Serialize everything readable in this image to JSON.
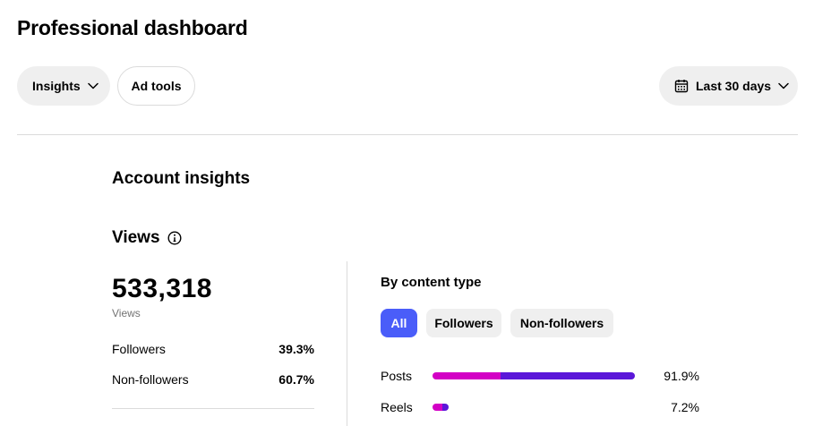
{
  "page": {
    "title": "Professional dashboard"
  },
  "toolbar": {
    "insights_label": "Insights",
    "ad_tools_label": "Ad tools",
    "date_range_label": "Last 30 days"
  },
  "insights": {
    "section_title": "Account insights",
    "views_heading": "Views",
    "views_total": "533,318",
    "views_label": "Views",
    "split": [
      {
        "label": "Followers",
        "value": "39.3%"
      },
      {
        "label": "Non-followers",
        "value": "60.7%"
      }
    ]
  },
  "content_type": {
    "title": "By content type",
    "filters": [
      {
        "label": "All",
        "selected": true
      },
      {
        "label": "Followers",
        "selected": false
      },
      {
        "label": "Non-followers",
        "selected": false
      }
    ],
    "rows": [
      {
        "label": "Posts",
        "value": "91.9%",
        "total_pct": 91.9,
        "followers_share_pct": 33.5
      },
      {
        "label": "Reels",
        "value": "7.2%",
        "total_pct": 7.2,
        "followers_share_pct": 60
      }
    ]
  },
  "colors": {
    "accent": "#4a5df9",
    "followers_segment": "#d300c5",
    "non_followers_segment": "#5b17d9"
  }
}
